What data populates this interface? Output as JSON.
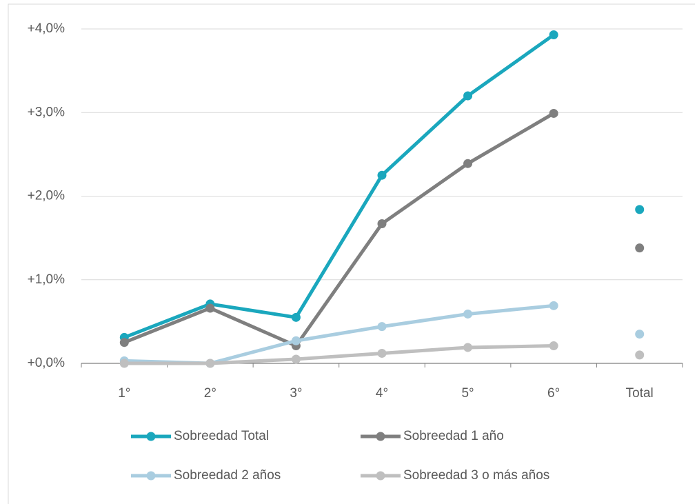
{
  "chart_data": {
    "type": "line",
    "categories": [
      "1°",
      "2°",
      "3°",
      "4°",
      "5°",
      "6°",
      "Total"
    ],
    "series": [
      {
        "name": "Sobreedad Total",
        "color": "#1aa7bd",
        "values": [
          0.31,
          0.71,
          0.55,
          2.25,
          3.2,
          3.93,
          1.84
        ]
      },
      {
        "name": "Sobreedad 1 año",
        "color": "#7f7f7f",
        "values": [
          0.25,
          0.66,
          0.21,
          1.67,
          2.39,
          2.99,
          1.38
        ]
      },
      {
        "name": "Sobreedad 2 años",
        "color": "#a9cde0",
        "values": [
          0.03,
          0.0,
          0.27,
          0.44,
          0.59,
          0.69,
          0.35
        ]
      },
      {
        "name": "Sobreedad 3 o más años",
        "color": "#bfbfbf",
        "values": [
          0.0,
          0.0,
          0.05,
          0.12,
          0.19,
          0.21,
          0.1
        ]
      }
    ],
    "ylim": [
      0,
      4
    ],
    "yticks": [
      {
        "value": 0,
        "label": "+0,0%"
      },
      {
        "value": 1,
        "label": "+1,0%"
      },
      {
        "value": 2,
        "label": "+2,0%"
      },
      {
        "value": 3,
        "label": "+3,0%"
      },
      {
        "value": 4,
        "label": "+4,0%"
      }
    ],
    "grid": true,
    "legend": "bottom"
  }
}
